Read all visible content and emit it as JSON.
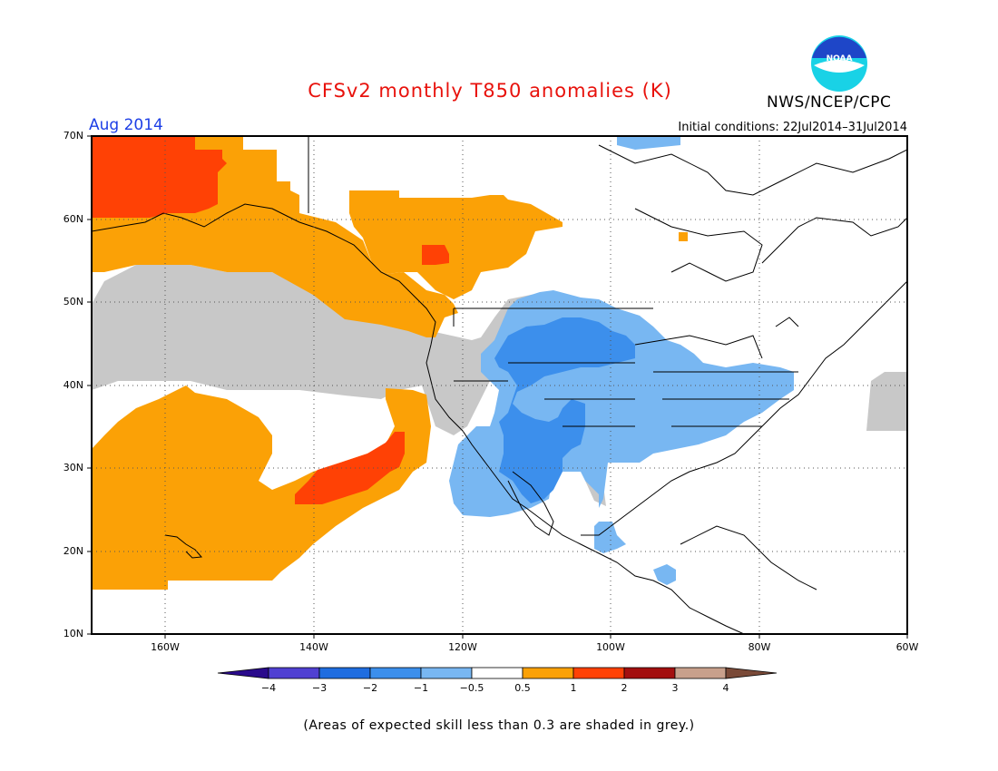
{
  "header": {
    "title": "CFSv2 monthly T850 anomalies (K)",
    "month": "Aug 2014",
    "agency": "NWS/NCEP/CPC",
    "logo_text": "NOAA",
    "initial_conditions": "Initial conditions: 22Jul2014–31Jul2014"
  },
  "axes": {
    "lat_labels": [
      "70N",
      "60N",
      "50N",
      "40N",
      "30N",
      "20N",
      "10N"
    ],
    "lon_labels": [
      "160W",
      "140W",
      "120W",
      "100W",
      "80W",
      "60W"
    ]
  },
  "colorbar": {
    "labels": [
      "−4",
      "−3",
      "−2",
      "−1",
      "−0.5",
      "0.5",
      "1",
      "2",
      "3",
      "4"
    ],
    "colors": {
      "lt_m4": "#2a0a8c",
      "m4_m3": "#5040d2",
      "m3_m2": "#1f6de0",
      "m2_m1": "#3c8fec",
      "m1_m05": "#78b7f2",
      "neutral": "#ffffff",
      "p05_p1": "#fba106",
      "p1_p2": "#ff4105",
      "p2_p3": "#a30f0f",
      "p3_p4": "#c8a08c",
      "gt_p4": "#7a4a38"
    }
  },
  "skill_mask_color": "#c8c8c8",
  "footnote": "(Areas of expected skill less than 0.3 are shaded in grey.)"
}
